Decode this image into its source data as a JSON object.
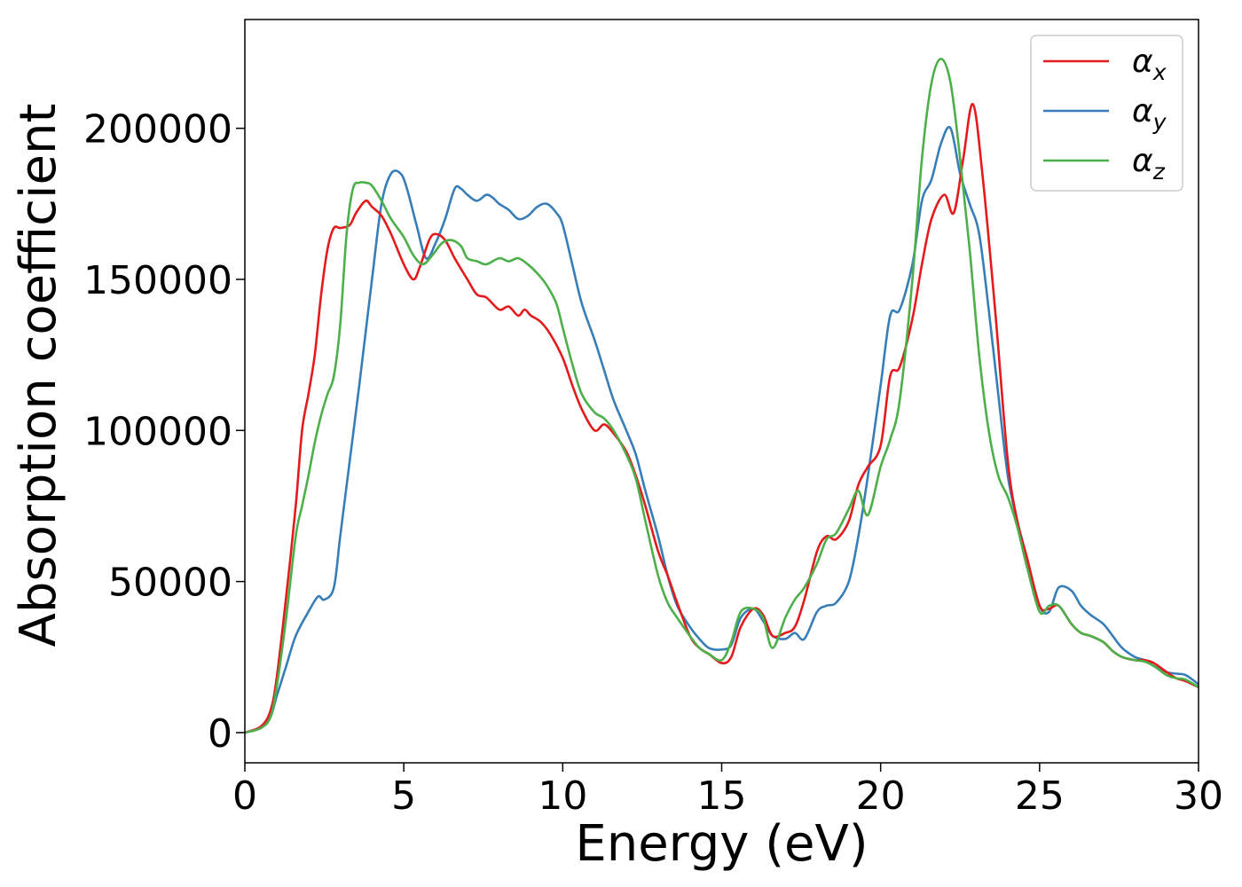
{
  "chart_data": {
    "type": "line",
    "xlabel": "Energy (eV)",
    "ylabel": "Absorption coefficient",
    "xlim": [
      0,
      30
    ],
    "ylim": [
      -10000,
      236000
    ],
    "xticks": [
      0,
      5,
      10,
      15,
      20,
      25,
      30
    ],
    "xtick_labels": [
      "0",
      "5",
      "10",
      "15",
      "20",
      "25",
      "30"
    ],
    "yticks": [
      0,
      50000,
      100000,
      150000,
      200000
    ],
    "ytick_labels": [
      "0",
      "50000",
      "100000",
      "150000",
      "200000"
    ],
    "grid": false,
    "legend_position": "top-right",
    "series": [
      {
        "name": "αx",
        "legend": {
          "base": "α",
          "sub": "x"
        },
        "color": "#e41a1c",
        "x": [
          0,
          0.5,
          0.8,
          1.0,
          1.3,
          1.6,
          1.8,
          2.0,
          2.2,
          2.4,
          2.6,
          2.8,
          3.0,
          3.3,
          3.5,
          3.8,
          4.0,
          4.3,
          4.6,
          5.0,
          5.3,
          5.5,
          5.8,
          6.0,
          6.3,
          6.6,
          7.0,
          7.3,
          7.6,
          8.0,
          8.3,
          8.6,
          8.8,
          9.0,
          9.3,
          9.6,
          10.0,
          10.3,
          10.6,
          11.0,
          11.3,
          11.6,
          12.0,
          12.3,
          12.6,
          13.0,
          13.3,
          13.6,
          14.0,
          14.3,
          14.6,
          15.0,
          15.3,
          15.6,
          16.0,
          16.3,
          16.6,
          17.0,
          17.3,
          17.6,
          18.0,
          18.3,
          18.6,
          19.0,
          19.3,
          19.6,
          20.0,
          20.3,
          20.6,
          21.0,
          21.3,
          21.6,
          22.0,
          22.3,
          22.6,
          22.9,
          23.2,
          23.6,
          24.0,
          24.3,
          24.6,
          25.0,
          25.3,
          25.6,
          26.0,
          26.3,
          26.6,
          27.0,
          27.3,
          27.6,
          28.0,
          28.3,
          28.6,
          29.0,
          29.3,
          29.6,
          30.0
        ],
        "y": [
          0,
          2000,
          7000,
          18000,
          45000,
          75000,
          100000,
          112000,
          125000,
          145000,
          160000,
          167000,
          167000,
          168000,
          172000,
          176000,
          174000,
          171000,
          165000,
          155000,
          150000,
          154000,
          163000,
          165000,
          163000,
          157000,
          150000,
          145000,
          144000,
          140000,
          141000,
          138000,
          140000,
          138000,
          136000,
          132000,
          124000,
          115000,
          107000,
          100000,
          102000,
          99000,
          93000,
          85000,
          75000,
          60000,
          52000,
          43000,
          32000,
          28000,
          26000,
          23000,
          25000,
          35000,
          41000,
          39000,
          32000,
          33000,
          35000,
          44000,
          60000,
          65000,
          64000,
          70000,
          82000,
          88000,
          95000,
          118000,
          121000,
          137000,
          155000,
          170000,
          178000,
          172000,
          190000,
          208000,
          185000,
          140000,
          90000,
          70000,
          58000,
          42000,
          41000,
          42000,
          36000,
          33000,
          32000,
          30000,
          27000,
          25000,
          24000,
          24000,
          23000,
          20000,
          18000,
          17000,
          15000
        ]
      },
      {
        "name": "αy",
        "legend": {
          "base": "α",
          "sub": "y"
        },
        "color": "#377eb8",
        "x": [
          0,
          0.5,
          0.8,
          1.0,
          1.3,
          1.6,
          2.0,
          2.3,
          2.5,
          2.8,
          3.0,
          3.3,
          3.6,
          4.0,
          4.3,
          4.6,
          4.9,
          5.1,
          5.4,
          5.7,
          6.0,
          6.3,
          6.6,
          6.8,
          7.0,
          7.3,
          7.6,
          7.8,
          8.0,
          8.3,
          8.6,
          8.9,
          9.2,
          9.5,
          9.8,
          10.0,
          10.3,
          10.6,
          11.0,
          11.3,
          11.6,
          12.0,
          12.3,
          12.6,
          13.0,
          13.3,
          13.6,
          14.0,
          14.3,
          14.6,
          15.0,
          15.3,
          15.6,
          16.0,
          16.3,
          16.6,
          17.0,
          17.3,
          17.6,
          18.0,
          18.3,
          18.6,
          19.0,
          19.3,
          19.6,
          20.0,
          20.3,
          20.6,
          21.0,
          21.3,
          21.6,
          21.9,
          22.2,
          22.5,
          22.8,
          23.1,
          23.4,
          23.7,
          24.0,
          24.3,
          24.6,
          25.0,
          25.3,
          25.6,
          26.0,
          26.3,
          26.6,
          27.0,
          27.3,
          27.6,
          28.0,
          28.3,
          28.6,
          29.0,
          29.3,
          29.6,
          30.0
        ],
        "y": [
          0,
          1500,
          5000,
          12000,
          22000,
          32000,
          40000,
          45000,
          44000,
          48000,
          65000,
          90000,
          115000,
          150000,
          175000,
          185000,
          185000,
          180000,
          168000,
          157000,
          162000,
          170000,
          180000,
          180000,
          178000,
          176000,
          178000,
          177000,
          175000,
          173000,
          170000,
          171000,
          174000,
          175000,
          172000,
          168000,
          155000,
          142000,
          130000,
          120000,
          110000,
          100000,
          92000,
          80000,
          65000,
          52000,
          42000,
          35000,
          31000,
          28000,
          27500,
          29000,
          38000,
          41000,
          37000,
          32000,
          31000,
          33000,
          31000,
          40000,
          42000,
          43000,
          50000,
          65000,
          85000,
          115000,
          138000,
          140000,
          155000,
          176000,
          183000,
          195000,
          200000,
          185000,
          175000,
          165000,
          140000,
          112000,
          85000,
          70000,
          58000,
          42000,
          40000,
          48000,
          47000,
          42000,
          39000,
          36000,
          32000,
          28000,
          25000,
          24000,
          22000,
          20000,
          19500,
          19000,
          16000
        ]
      },
      {
        "name": "αz",
        "legend": {
          "base": "α",
          "sub": "z"
        },
        "color": "#4daf4a",
        "x": [
          0,
          0.5,
          0.8,
          1.0,
          1.3,
          1.6,
          1.8,
          2.0,
          2.2,
          2.4,
          2.6,
          2.8,
          3.0,
          3.2,
          3.4,
          3.6,
          3.8,
          4.0,
          4.3,
          4.6,
          5.0,
          5.3,
          5.6,
          5.9,
          6.2,
          6.5,
          6.8,
          7.0,
          7.3,
          7.6,
          8.0,
          8.3,
          8.6,
          8.9,
          9.2,
          9.5,
          9.8,
          10.0,
          10.3,
          10.6,
          11.0,
          11.3,
          11.6,
          12.0,
          12.3,
          12.6,
          13.0,
          13.3,
          13.6,
          14.0,
          14.3,
          14.6,
          15.0,
          15.3,
          15.6,
          16.0,
          16.3,
          16.6,
          17.0,
          17.3,
          17.6,
          18.0,
          18.3,
          18.6,
          19.0,
          19.3,
          19.6,
          20.0,
          20.3,
          20.6,
          21.0,
          21.3,
          21.6,
          21.9,
          22.2,
          22.5,
          22.8,
          23.1,
          23.4,
          23.7,
          24.0,
          24.3,
          24.6,
          25.0,
          25.3,
          25.6,
          26.0,
          26.3,
          26.6,
          27.0,
          27.3,
          27.6,
          28.0,
          28.3,
          28.6,
          29.0,
          29.3,
          29.6,
          30.0
        ],
        "y": [
          0,
          1500,
          5000,
          15000,
          38000,
          65000,
          75000,
          85000,
          96000,
          105000,
          112000,
          118000,
          135000,
          165000,
          180000,
          182000,
          182000,
          181000,
          176000,
          170000,
          164000,
          158000,
          155000,
          158000,
          162000,
          163000,
          161000,
          157000,
          156000,
          155000,
          157000,
          156000,
          157000,
          155000,
          152000,
          148000,
          142000,
          134000,
          122000,
          112000,
          106000,
          104000,
          100000,
          92000,
          84000,
          70000,
          52000,
          43000,
          38000,
          32000,
          28000,
          26000,
          24000,
          30000,
          40000,
          41000,
          38000,
          28000,
          38000,
          44000,
          48000,
          56000,
          64000,
          66000,
          74000,
          80000,
          72000,
          88000,
          97000,
          110000,
          150000,
          190000,
          215000,
          223000,
          215000,
          190000,
          160000,
          125000,
          100000,
          85000,
          78000,
          68000,
          55000,
          40000,
          42000,
          42000,
          36000,
          33000,
          32000,
          30000,
          27000,
          25000,
          24000,
          23500,
          22000,
          19000,
          18000,
          17500,
          15000
        ]
      }
    ]
  }
}
